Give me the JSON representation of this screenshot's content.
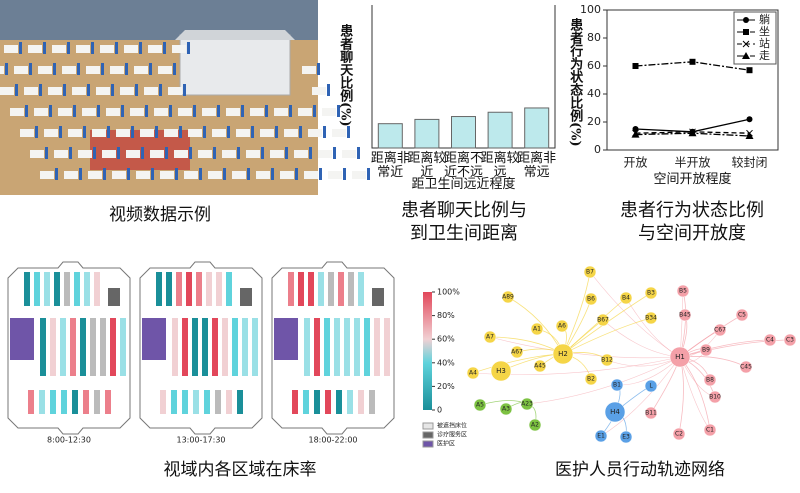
{
  "photo_caption": "视频数据示例",
  "chart_data": [
    {
      "type": "bar",
      "caption": "患者聊天比例与到卫生间距离",
      "ylabel": "患者聊天比例(%)",
      "xlabel": "距卫生间远近程度",
      "categories": [
        "距离非常近",
        "距离较近",
        "距离不近不远",
        "距离较远",
        "距离非常远"
      ],
      "values": [
        17,
        20,
        22,
        25,
        28
      ],
      "color": "#bde9ec",
      "ylim": [
        0,
        100
      ]
    },
    {
      "type": "line",
      "caption": "患者行为状态比例与空间开放度",
      "ylabel": "患者行为状态比例(%)",
      "xlabel": "空间开放程度",
      "categories": [
        "开放",
        "半开放",
        "较封闭"
      ],
      "ylim": [
        0,
        100
      ],
      "yticks": [
        0,
        20,
        40,
        60,
        80,
        100
      ],
      "legend": "upper right",
      "series": [
        {
          "name": "躺",
          "color": "#000",
          "marker": "circle",
          "linestyle": "solid",
          "values": [
            15,
            13,
            22
          ]
        },
        {
          "name": "坐",
          "color": "#000",
          "marker": "square",
          "linestyle": "dashdot",
          "values": [
            60,
            63,
            57
          ]
        },
        {
          "name": "站",
          "color": "#000",
          "marker": "x",
          "linestyle": "dashed",
          "values": [
            12,
            13,
            12
          ]
        },
        {
          "name": "走",
          "color": "#000",
          "marker": "triangle",
          "linestyle": "dashdot",
          "values": [
            11,
            12,
            10
          ]
        }
      ]
    }
  ],
  "floor_plan": {
    "caption": "视域内各区域在床率",
    "panels": [
      {
        "time": "8:00-12:30"
      },
      {
        "time": "13:00-17:30"
      },
      {
        "time": "18:00-22:00"
      }
    ],
    "colorbar": {
      "lim": [
        0,
        100
      ],
      "ticks": [
        0,
        {
          "value": 20,
          "label": "20%"
        },
        {
          "value": 40,
          "label": "40%"
        },
        {
          "value": 60,
          "label": "60%"
        },
        {
          "value": 80,
          "label": "80%"
        },
        {
          "value": 100,
          "label": "100%"
        }
      ]
    },
    "legend": [
      "被遮挡床位",
      "诊疗服务区",
      "医护区"
    ]
  },
  "network": {
    "caption": "医护人员行动轨迹网络",
    "nodes": [
      {
        "label": "B7",
        "group": "yellow"
      },
      {
        "label": "A89",
        "group": "yellow"
      },
      {
        "label": "B6",
        "group": "yellow"
      },
      {
        "label": "B4",
        "group": "yellow"
      },
      {
        "label": "B3",
        "group": "yellow"
      },
      {
        "label": "A6",
        "group": "yellow"
      },
      {
        "label": "B67",
        "group": "yellow"
      },
      {
        "label": "B34",
        "group": "yellow"
      },
      {
        "label": "A1",
        "group": "yellow"
      },
      {
        "label": "A7",
        "group": "yellow"
      },
      {
        "label": "A67",
        "group": "yellow"
      },
      {
        "label": "H2",
        "group": "yellow"
      },
      {
        "label": "B12",
        "group": "yellow"
      },
      {
        "label": "A45",
        "group": "yellow"
      },
      {
        "label": "B2",
        "group": "yellow"
      },
      {
        "label": "A4",
        "group": "yellow"
      },
      {
        "label": "H3",
        "group": "yellow"
      },
      {
        "label": "A5",
        "group": "green"
      },
      {
        "label": "A23",
        "group": "green"
      },
      {
        "label": "A3",
        "group": "green"
      },
      {
        "label": "A2",
        "group": "green"
      },
      {
        "label": "B1",
        "group": "blue"
      },
      {
        "label": "H4",
        "group": "blue"
      },
      {
        "label": "L",
        "group": "blue"
      },
      {
        "label": "E1",
        "group": "blue"
      },
      {
        "label": "E3",
        "group": "blue"
      },
      {
        "label": "H1",
        "group": "pink"
      },
      {
        "label": "B5",
        "group": "pink"
      },
      {
        "label": "B45",
        "group": "pink"
      },
      {
        "label": "C5",
        "group": "pink"
      },
      {
        "label": "C67",
        "group": "pink"
      },
      {
        "label": "C4",
        "group": "pink"
      },
      {
        "label": "C3",
        "group": "pink"
      },
      {
        "label": "B9",
        "group": "pink"
      },
      {
        "label": "C45",
        "group": "pink"
      },
      {
        "label": "B8",
        "group": "pink"
      },
      {
        "label": "B10",
        "group": "pink"
      },
      {
        "label": "B11",
        "group": "pink"
      },
      {
        "label": "C2",
        "group": "pink"
      },
      {
        "label": "C1",
        "group": "pink"
      }
    ]
  }
}
